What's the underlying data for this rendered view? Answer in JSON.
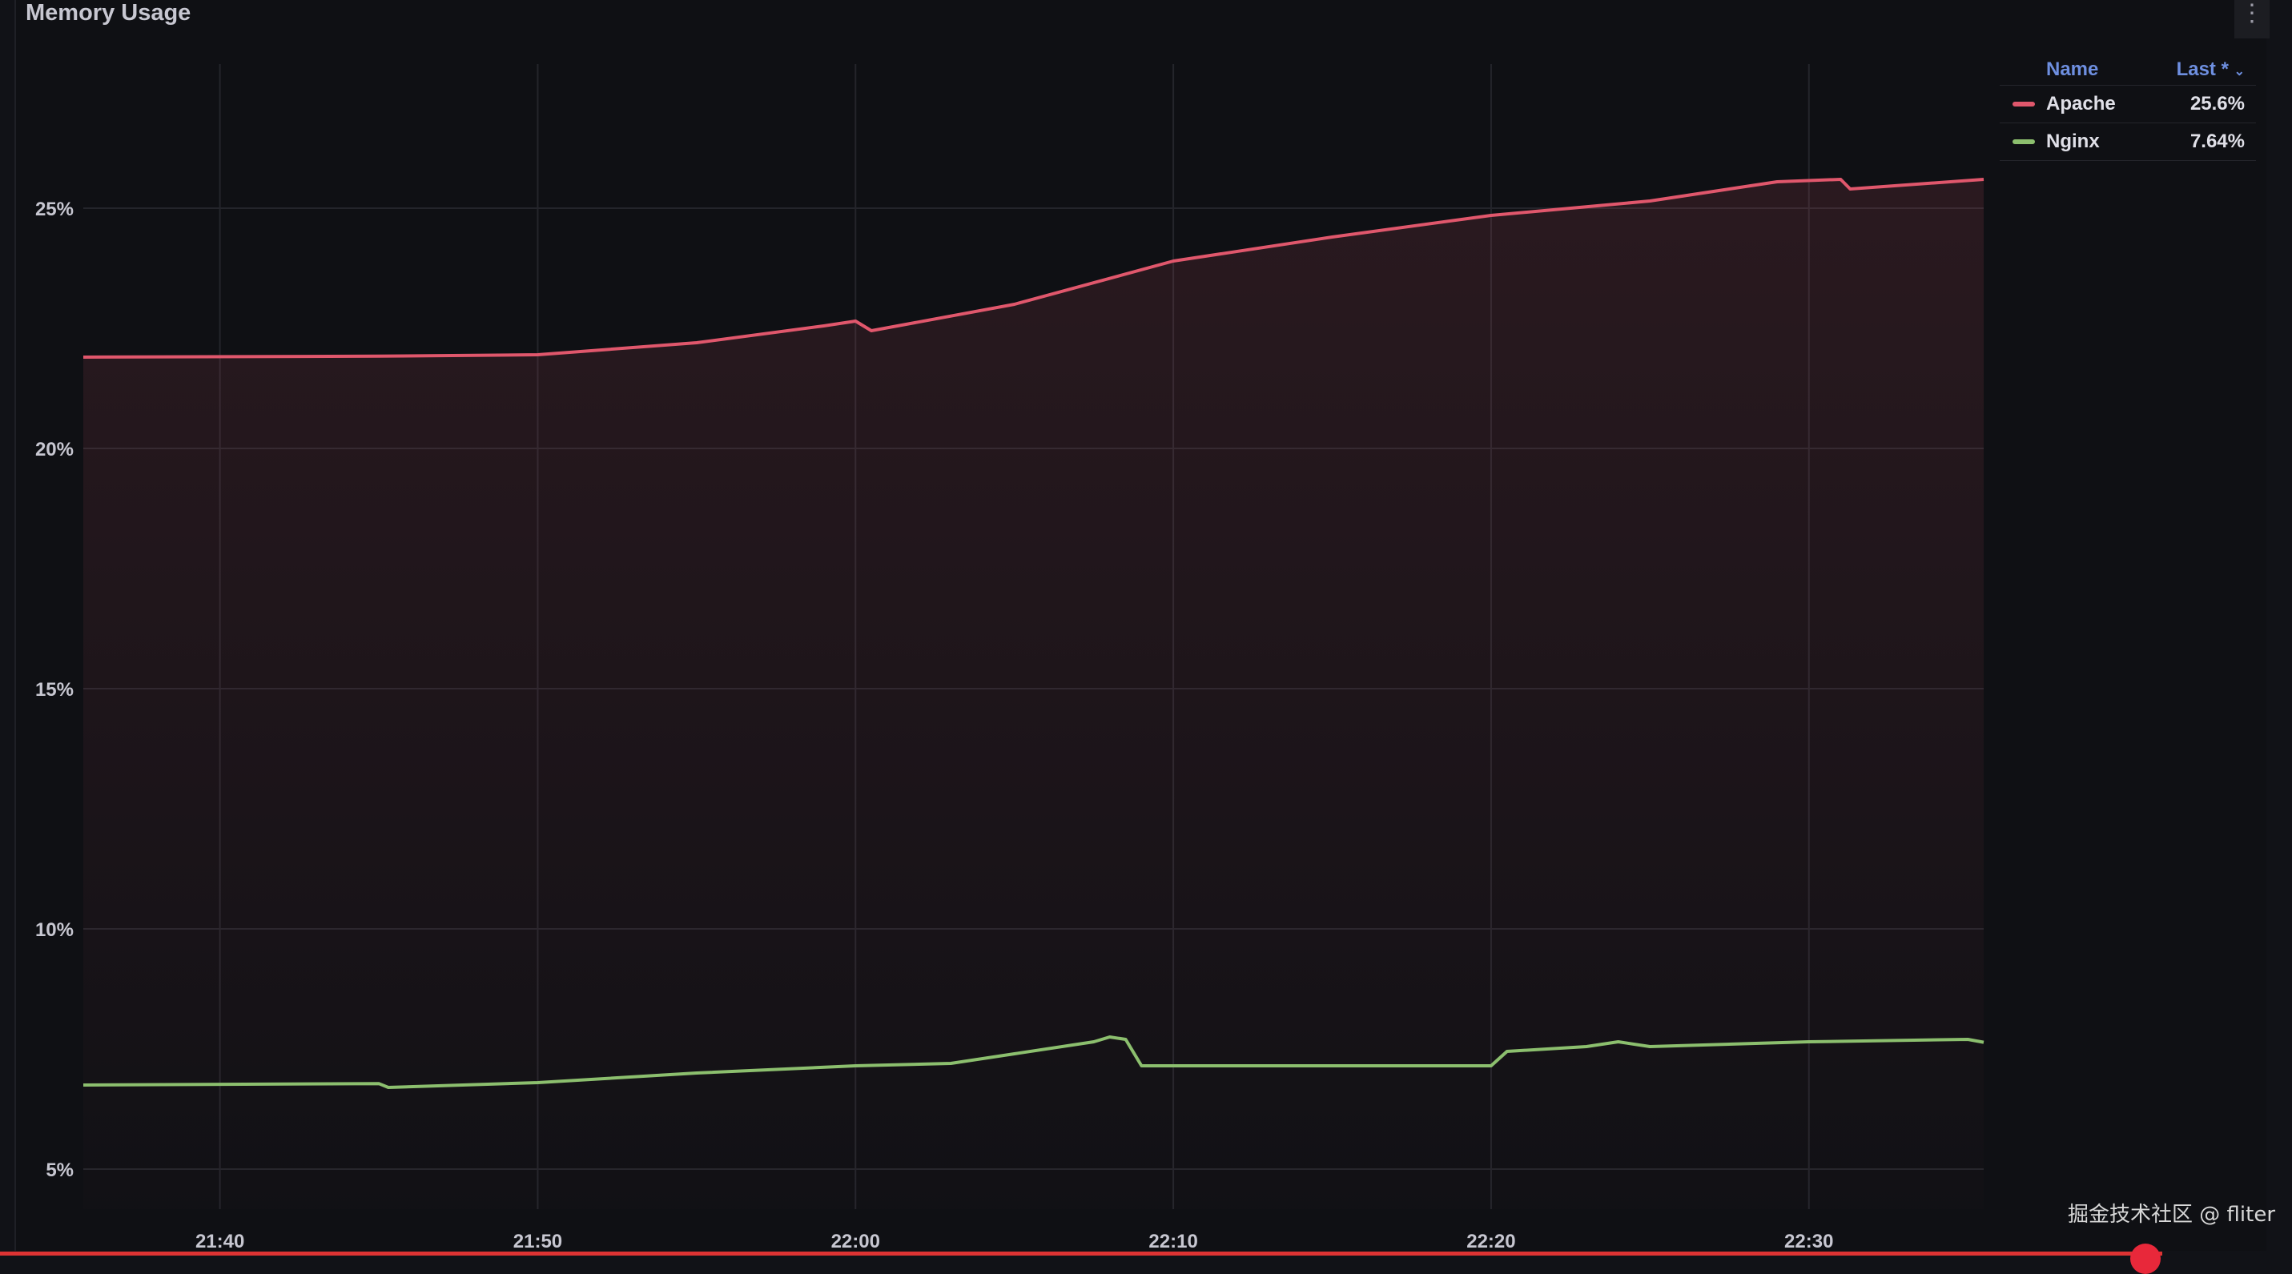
{
  "panel": {
    "title": "Memory Usage",
    "menu_icon": "kebab-menu-icon"
  },
  "legend": {
    "header_name": "Name",
    "header_last": "Last *",
    "sort_icon": "chevron-down-icon",
    "items": [
      {
        "name": "Apache",
        "last": "25.6%",
        "color": "#e0576c"
      },
      {
        "name": "Nginx",
        "last": "7.64%",
        "color": "#8cbf6e"
      }
    ]
  },
  "watermark": "掘金技术社区 @ fliter",
  "chart_data": {
    "type": "line",
    "title": "Memory Usage",
    "xlabel": "",
    "ylabel": "",
    "x_unit": "minutes after 21:00",
    "xlim": [
      35.7,
      95.5
    ],
    "ylim": [
      4.5,
      28
    ],
    "x_ticks": [
      {
        "v": 40,
        "label": "21:40"
      },
      {
        "v": 50,
        "label": "21:50"
      },
      {
        "v": 60,
        "label": "22:00"
      },
      {
        "v": 70,
        "label": "22:10"
      },
      {
        "v": 80,
        "label": "22:20"
      },
      {
        "v": 90,
        "label": "22:30"
      }
    ],
    "y_ticks": [
      {
        "v": 5,
        "label": "5%"
      },
      {
        "v": 10,
        "label": "10%"
      },
      {
        "v": 15,
        "label": "15%"
      },
      {
        "v": 20,
        "label": "20%"
      },
      {
        "v": 25,
        "label": "25%"
      }
    ],
    "grid": true,
    "legend_position": "right",
    "series": [
      {
        "name": "Apache",
        "color": "#e0576c",
        "fill": true,
        "x": [
          35.7,
          45,
          50,
          55,
          59,
          60,
          60.5,
          65,
          70,
          75,
          80,
          85,
          89,
          91,
          91.3,
          95.5
        ],
        "y": [
          21.9,
          21.92,
          21.95,
          22.2,
          22.55,
          22.65,
          22.45,
          23.0,
          23.9,
          24.4,
          24.85,
          25.15,
          25.55,
          25.6,
          25.4,
          25.6
        ]
      },
      {
        "name": "Nginx",
        "color": "#8cbf6e",
        "fill": false,
        "x": [
          35.7,
          45,
          45.3,
          50,
          55,
          60,
          63,
          65,
          67.5,
          68,
          68.5,
          69,
          70,
          80,
          80.5,
          83,
          84,
          85,
          90,
          95,
          95.5
        ],
        "y": [
          6.75,
          6.78,
          6.7,
          6.8,
          7.0,
          7.15,
          7.2,
          7.4,
          7.65,
          7.75,
          7.7,
          7.15,
          7.15,
          7.15,
          7.45,
          7.55,
          7.65,
          7.55,
          7.65,
          7.7,
          7.64
        ]
      }
    ]
  }
}
